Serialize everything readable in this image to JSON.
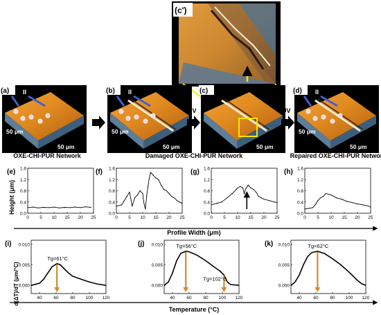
{
  "panels": {
    "inset": {
      "label": "(c')"
    },
    "afm": [
      {
        "label": "(a)",
        "marks": [
          "I",
          "II"
        ],
        "scale_y": "50 μm",
        "scale_x": "50 μm"
      },
      {
        "label": "(b)",
        "marks": [
          "I",
          "II"
        ],
        "scale_y": "50 μm",
        "scale_x": "50 μm"
      },
      {
        "label": "(c)",
        "marks": [],
        "scale_y": "",
        "scale_x": "50 μm"
      },
      {
        "label": "(d)",
        "marks": [
          "I",
          "II"
        ],
        "scale_y": "50 μm",
        "scale_x": "50 μm"
      }
    ],
    "uv_labels": [
      "UV",
      "UV"
    ],
    "captions": [
      "OXE-CHI-PUR Network",
      "Damaged OXE-CHI-PUR Network",
      "Repaired OXE-CHI-PUR Network"
    ]
  },
  "profiles": {
    "labels": [
      "(e)",
      "(f)",
      "(g)",
      "(h)"
    ],
    "ylabel": "Height (μm)",
    "xlabel": "Profile Width (μm)"
  },
  "dsc": {
    "labels": [
      "(i)",
      "(j)",
      "(k)"
    ],
    "ylabel": "d(ΔT)/dT (μm/°C)",
    "xlabel": "Temperature (°C)",
    "annotations": [
      [
        "Tg=61°C"
      ],
      [
        "Tg=56°C",
        "Tg=102°C"
      ],
      [
        "Tg=62°C"
      ]
    ]
  },
  "chart_data": [
    {
      "type": "line",
      "title": "(e)",
      "xlabel": "",
      "ylabel": "Height (μm)",
      "xlim": [
        0,
        25
      ],
      "ylim": [
        0,
        1.6
      ],
      "xticks": [
        0,
        5,
        10,
        15,
        20,
        25
      ],
      "yticks": [
        0.0,
        0.4,
        0.8,
        1.2,
        1.6
      ],
      "x": [
        0,
        2,
        4,
        6,
        8,
        10,
        12,
        14,
        16,
        18,
        20,
        22,
        24
      ],
      "y": [
        0.2,
        0.22,
        0.19,
        0.21,
        0.2,
        0.22,
        0.19,
        0.21,
        0.2,
        0.22,
        0.2,
        0.23,
        0.21
      ]
    },
    {
      "type": "line",
      "title": "(f)",
      "xlabel": "",
      "ylabel": "",
      "xlim": [
        0,
        25
      ],
      "ylim": [
        0,
        1.6
      ],
      "xticks": [
        0,
        5,
        10,
        15,
        20,
        25
      ],
      "yticks": [
        0.0,
        0.4,
        0.8,
        1.2,
        1.6
      ],
      "x": [
        0,
        2,
        3,
        4,
        5,
        6,
        7,
        8,
        9,
        10,
        10.5,
        11,
        11.5,
        12,
        12.5,
        13,
        14,
        15,
        16,
        17,
        18,
        19,
        20,
        21,
        22,
        23,
        24,
        25
      ],
      "y": [
        0.25,
        0.3,
        0.45,
        0.6,
        0.75,
        0.25,
        0.55,
        0.65,
        0.8,
        0.7,
        0.35,
        0.15,
        0.6,
        0.95,
        1.25,
        1.45,
        1.35,
        1.25,
        1.2,
        1.0,
        0.85,
        0.8,
        0.7,
        0.6,
        0.55,
        0.45,
        0.4,
        0.35
      ]
    },
    {
      "type": "line",
      "title": "(g)",
      "xlabel": "",
      "ylabel": "",
      "xlim": [
        0,
        25
      ],
      "ylim": [
        0,
        1.6
      ],
      "xticks": [
        0,
        5,
        10,
        15,
        20,
        25
      ],
      "yticks": [
        0.0,
        0.4,
        0.8,
        1.2,
        1.6
      ],
      "x": [
        0,
        2,
        4,
        6,
        8,
        10,
        11,
        12,
        12.5,
        13,
        14,
        15,
        16,
        17,
        18,
        19,
        20,
        22,
        24,
        25
      ],
      "y": [
        0.3,
        0.35,
        0.4,
        0.55,
        0.7,
        0.9,
        0.95,
        0.9,
        0.7,
        0.85,
        1.0,
        0.9,
        0.85,
        0.75,
        0.6,
        0.55,
        0.5,
        0.45,
        0.4,
        0.38
      ]
    },
    {
      "type": "line",
      "title": "(h)",
      "xlabel": "",
      "ylabel": "",
      "xlim": [
        0,
        25
      ],
      "ylim": [
        0,
        1.6
      ],
      "xticks": [
        0,
        5,
        10,
        15,
        20,
        25
      ],
      "yticks": [
        0.0,
        0.4,
        0.8,
        1.2,
        1.6
      ],
      "x": [
        0,
        2,
        3,
        4,
        5,
        6,
        7,
        8,
        10,
        12,
        14,
        16,
        18,
        20,
        22,
        24,
        25
      ],
      "y": [
        0.15,
        0.18,
        0.2,
        0.3,
        0.45,
        0.55,
        0.6,
        0.7,
        0.65,
        0.55,
        0.5,
        0.42,
        0.38,
        0.33,
        0.3,
        0.26,
        0.22
      ]
    },
    {
      "type": "line",
      "title": "(i)",
      "xlabel": "",
      "ylabel": "d(ΔT)/dT (μm/°C)",
      "xlim": [
        30,
        120
      ],
      "ylim": [
        -0.002,
        0.011
      ],
      "xticks": [
        40,
        60,
        80,
        100,
        120
      ],
      "yticks": [
        0.0,
        0.005,
        0.01
      ],
      "x": [
        30,
        40,
        45,
        50,
        55,
        61,
        65,
        70,
        75,
        80,
        90,
        100,
        110,
        120
      ],
      "y": [
        0.0,
        0.0005,
        0.0015,
        0.003,
        0.0045,
        0.0053,
        0.005,
        0.004,
        0.003,
        0.0022,
        0.0015,
        0.0008,
        0.0003,
        0.0
      ]
    },
    {
      "type": "line",
      "title": "(j)",
      "xlabel": "",
      "ylabel": "",
      "xlim": [
        30,
        120
      ],
      "ylim": [
        -0.002,
        0.011
      ],
      "xticks": [
        40,
        60,
        80,
        100,
        120
      ],
      "yticks": [
        0.0,
        0.005,
        0.01
      ],
      "x": [
        30,
        35,
        40,
        45,
        50,
        56,
        60,
        70,
        80,
        90,
        97,
        102,
        106,
        110,
        120
      ],
      "y": [
        0.0,
        0.0008,
        0.003,
        0.006,
        0.0078,
        0.0083,
        0.0082,
        0.0073,
        0.006,
        0.0045,
        0.0035,
        0.0025,
        0.0008,
        0.0002,
        0.0
      ]
    },
    {
      "type": "line",
      "title": "(k)",
      "xlabel": "",
      "ylabel": "",
      "xlim": [
        30,
        120
      ],
      "ylim": [
        -0.002,
        0.011
      ],
      "xticks": [
        40,
        60,
        80,
        100,
        120
      ],
      "yticks": [
        0.0,
        0.005,
        0.01
      ],
      "x": [
        30,
        35,
        40,
        45,
        50,
        55,
        62,
        70,
        80,
        90,
        100,
        110,
        115,
        120
      ],
      "y": [
        0.0,
        0.0008,
        0.0025,
        0.005,
        0.007,
        0.008,
        0.0083,
        0.0078,
        0.0065,
        0.005,
        0.0032,
        0.0012,
        0.0004,
        0.0
      ]
    }
  ]
}
